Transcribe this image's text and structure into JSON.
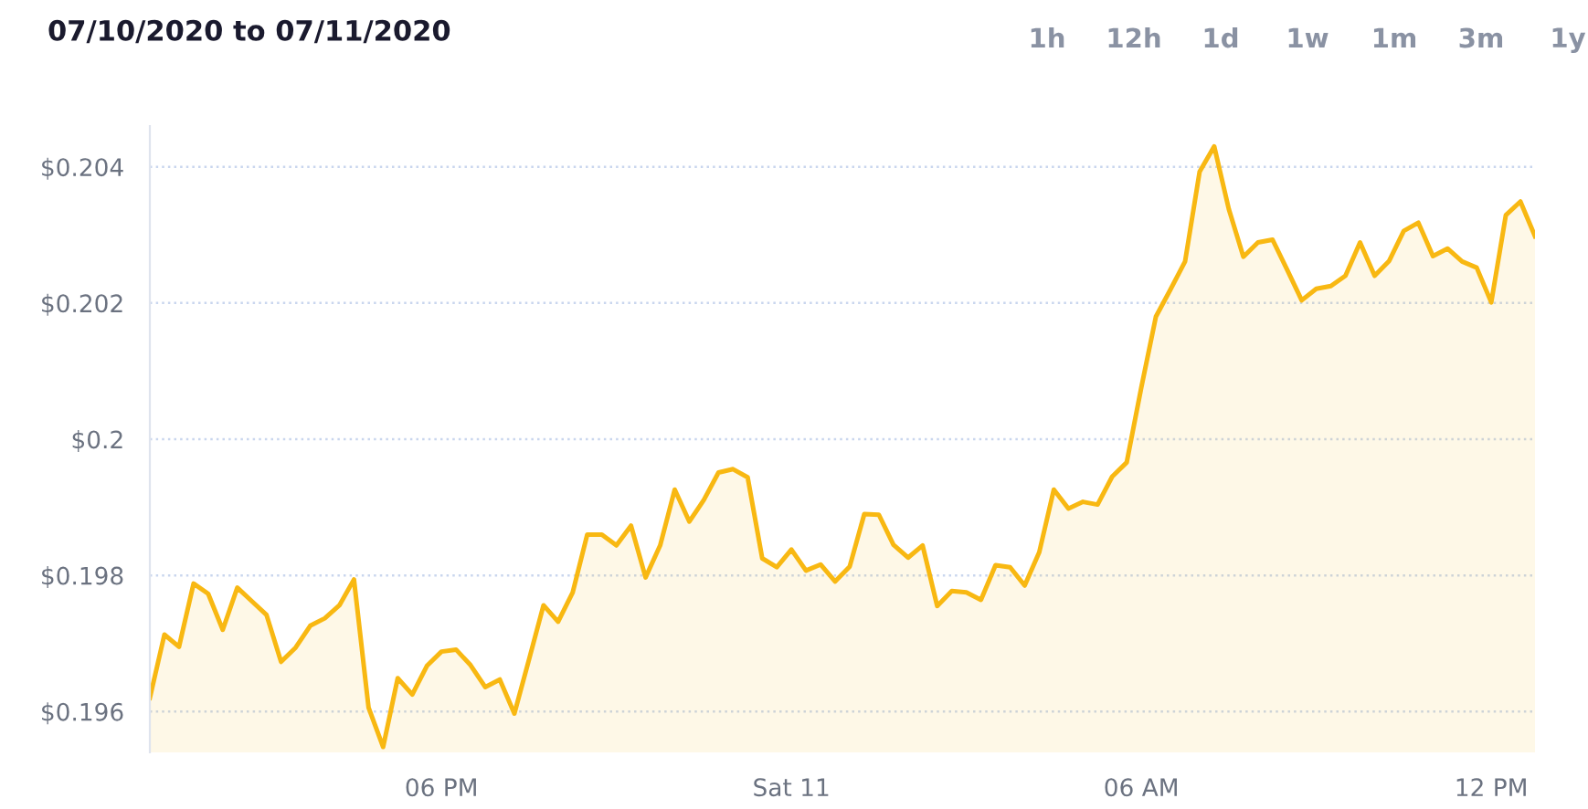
{
  "chart_data": {
    "type": "area",
    "title": "07/10/2020 to 07/11/2020",
    "annotations": [
      "1h",
      "12h",
      "1d",
      "1w",
      "1m",
      "3m",
      "1y"
    ],
    "x": [
      "2020-07-10T13:00",
      "2020-07-10T13:15",
      "2020-07-10T13:30",
      "2020-07-10T13:45",
      "2020-07-10T14:00",
      "2020-07-10T14:15",
      "2020-07-10T14:30",
      "2020-07-10T14:45",
      "2020-07-10T15:00",
      "2020-07-10T15:15",
      "2020-07-10T15:30",
      "2020-07-10T15:45",
      "2020-07-10T16:00",
      "2020-07-10T16:15",
      "2020-07-10T16:30",
      "2020-07-10T16:45",
      "2020-07-10T17:00",
      "2020-07-10T17:15",
      "2020-07-10T17:30",
      "2020-07-10T17:45",
      "2020-07-10T18:00",
      "2020-07-10T18:15",
      "2020-07-10T18:30",
      "2020-07-10T18:45",
      "2020-07-10T19:00",
      "2020-07-10T19:15",
      "2020-07-10T19:30",
      "2020-07-10T19:45",
      "2020-07-10T20:00",
      "2020-07-10T20:15",
      "2020-07-10T20:30",
      "2020-07-10T20:45",
      "2020-07-10T21:00",
      "2020-07-10T21:15",
      "2020-07-10T21:30",
      "2020-07-10T21:45",
      "2020-07-10T22:00",
      "2020-07-10T22:15",
      "2020-07-10T22:30",
      "2020-07-10T22:45",
      "2020-07-10T23:00",
      "2020-07-10T23:15",
      "2020-07-10T23:30",
      "2020-07-10T23:45",
      "2020-07-11T00:00",
      "2020-07-11T00:15",
      "2020-07-11T00:30",
      "2020-07-11T00:45",
      "2020-07-11T01:00",
      "2020-07-11T01:15",
      "2020-07-11T01:30",
      "2020-07-11T01:45",
      "2020-07-11T02:00",
      "2020-07-11T02:15",
      "2020-07-11T02:30",
      "2020-07-11T02:45",
      "2020-07-11T03:00",
      "2020-07-11T03:15",
      "2020-07-11T03:30",
      "2020-07-11T03:45",
      "2020-07-11T04:00",
      "2020-07-11T04:15",
      "2020-07-11T04:30",
      "2020-07-11T04:45",
      "2020-07-11T05:00",
      "2020-07-11T05:15",
      "2020-07-11T05:30",
      "2020-07-11T05:45",
      "2020-07-11T06:00",
      "2020-07-11T06:15",
      "2020-07-11T06:30",
      "2020-07-11T06:45",
      "2020-07-11T07:00",
      "2020-07-11T07:15",
      "2020-07-11T07:30",
      "2020-07-11T07:45",
      "2020-07-11T08:00",
      "2020-07-11T08:15",
      "2020-07-11T08:30",
      "2020-07-11T08:45",
      "2020-07-11T09:00",
      "2020-07-11T09:15",
      "2020-07-11T09:30",
      "2020-07-11T09:45",
      "2020-07-11T10:00",
      "2020-07-11T10:15",
      "2020-07-11T10:30",
      "2020-07-11T10:45",
      "2020-07-11T11:00",
      "2020-07-11T11:15",
      "2020-07-11T11:30",
      "2020-07-11T11:45",
      "2020-07-11T12:00",
      "2020-07-11T12:15",
      "2020-07-11T12:30",
      "2020-07-11T12:45"
    ],
    "series": [
      {
        "color": "#f8b812",
        "values": [
          0.1962,
          0.19713,
          0.19695,
          0.19788,
          0.19773,
          0.1972,
          0.19782,
          0.19762,
          0.19742,
          0.19673,
          0.19694,
          0.19726,
          0.19737,
          0.19756,
          0.19794,
          0.19606,
          0.19548,
          0.19649,
          0.19625,
          0.19667,
          0.19688,
          0.19691,
          0.19668,
          0.19636,
          0.19647,
          0.19597,
          0.19676,
          0.19756,
          0.19732,
          0.19775,
          0.1986,
          0.1986,
          0.19844,
          0.19873,
          0.19797,
          0.19844,
          0.19926,
          0.19879,
          0.19911,
          0.19951,
          0.19956,
          0.19944,
          0.19825,
          0.19812,
          0.19838,
          0.19807,
          0.19816,
          0.19791,
          0.19813,
          0.1989,
          0.19889,
          0.19845,
          0.19826,
          0.19844,
          0.19755,
          0.19777,
          0.19775,
          0.19764,
          0.19815,
          0.19812,
          0.19785,
          0.19834,
          0.19926,
          0.19898,
          0.19908,
          0.19904,
          0.19945,
          0.19966,
          0.20076,
          0.2018,
          0.2022,
          0.20261,
          0.20393,
          0.2043,
          0.20338,
          0.20268,
          0.20289,
          0.20293,
          0.20249,
          0.20204,
          0.20221,
          0.20225,
          0.2024,
          0.20289,
          0.2024,
          0.20262,
          0.20306,
          0.20318,
          0.20269,
          0.2028,
          0.20261,
          0.20252,
          0.20201,
          0.20329,
          0.20349,
          0.20298
        ]
      }
    ],
    "xlim": [
      "2020-07-10T13:00",
      "2020-07-11T12:45"
    ],
    "xticks": [
      {
        "value": "2020-07-10T18:00",
        "label": "06 PM"
      },
      {
        "value": "2020-07-11T00:00",
        "label": "Sat 11"
      },
      {
        "value": "2020-07-11T06:00",
        "label": "06 AM"
      },
      {
        "value": "2020-07-11T12:00",
        "label": "12 PM"
      }
    ],
    "ylim": [
      0.1954,
      0.2046
    ],
    "yticks": [
      {
        "value": 0.196,
        "label": "$0.196"
      },
      {
        "value": 0.198,
        "label": "$0.198"
      },
      {
        "value": 0.2,
        "label": "$0.2"
      },
      {
        "value": 0.202,
        "label": "$0.202"
      },
      {
        "value": 0.204,
        "label": "$0.204"
      }
    ],
    "grid": "y",
    "line_style": "solid"
  }
}
